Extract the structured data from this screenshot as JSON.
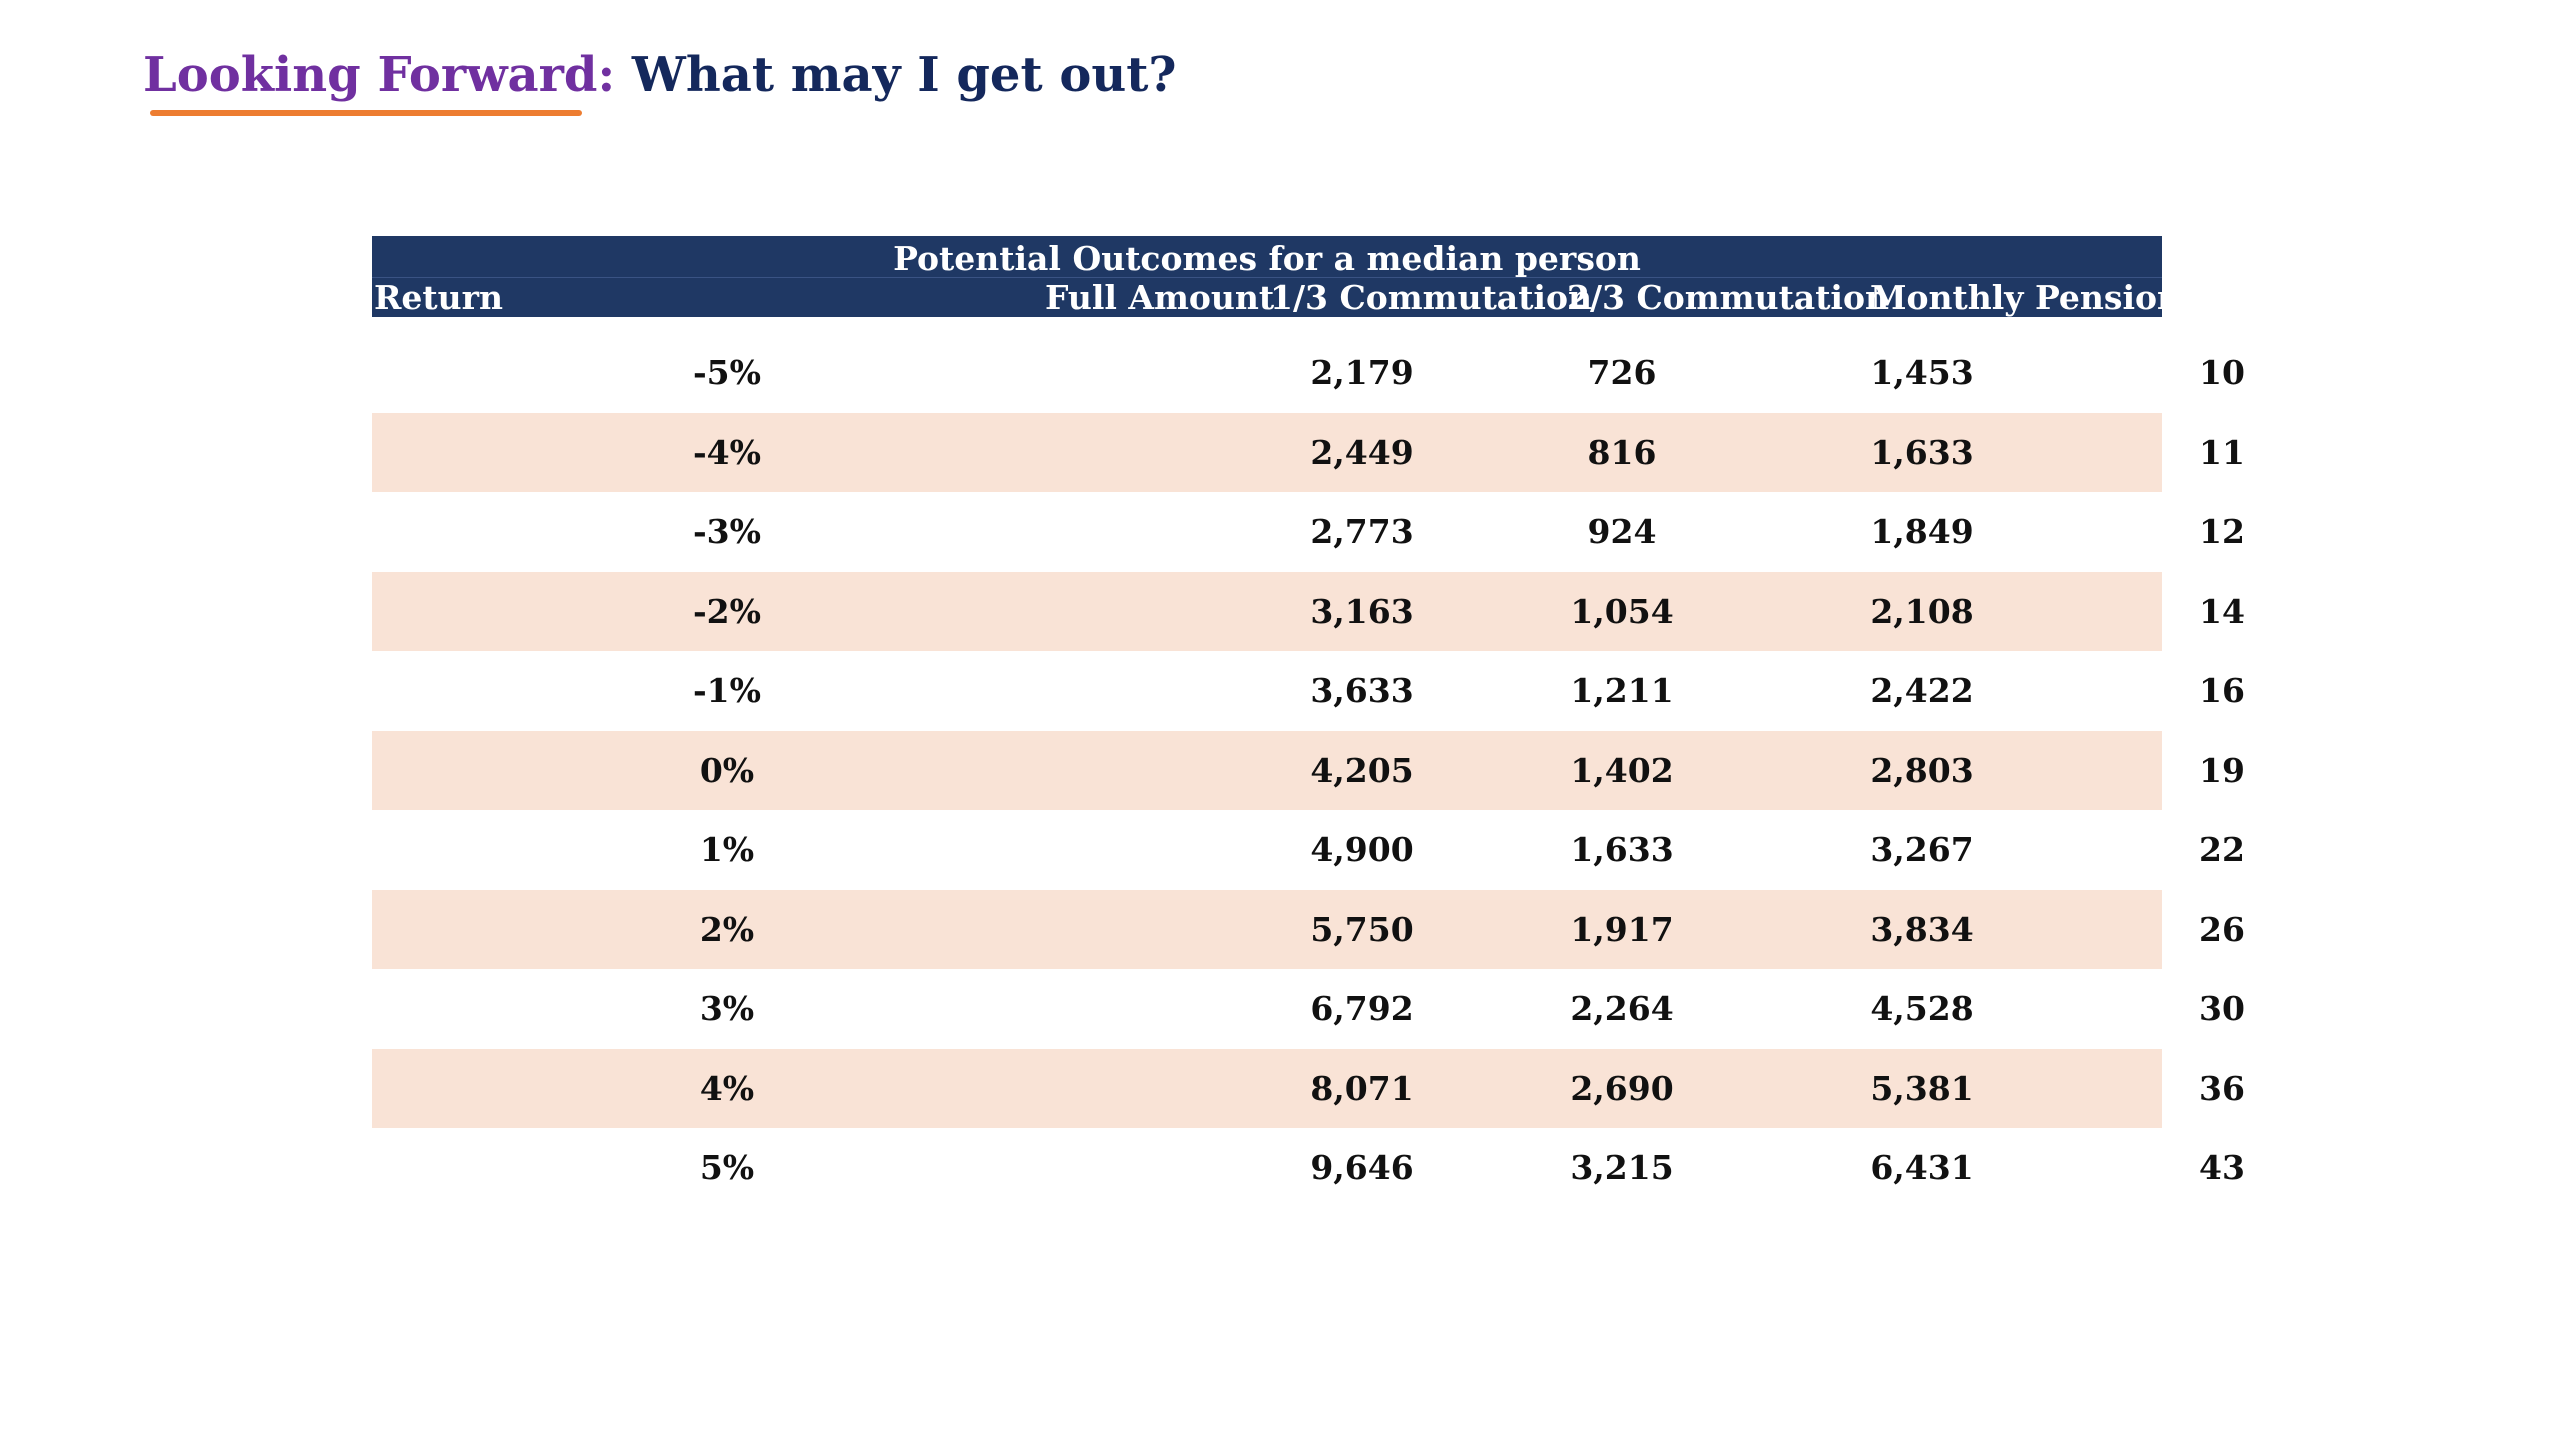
{
  "header": {
    "title_accent": "Looking Forward:",
    "title_main": " What may I get out?"
  },
  "colors": {
    "accent": "#7030a0",
    "title": "#14285c",
    "underline": "#ed7d31",
    "table_header": "#1f3864",
    "band": "#f9e3d6"
  },
  "table": {
    "caption": "Potential Outcomes for a median person",
    "columns": [
      "Return",
      "Full Amount",
      "1/3 Commutation",
      "2/3 Commutation",
      "Monthly Pension"
    ],
    "rows": [
      [
        "-5%",
        "2,179",
        "726",
        "1,453",
        "10"
      ],
      [
        "-4%",
        "2,449",
        "816",
        "1,633",
        "11"
      ],
      [
        "-3%",
        "2,773",
        "924",
        "1,849",
        "12"
      ],
      [
        "-2%",
        "3,163",
        "1,054",
        "2,108",
        "14"
      ],
      [
        "-1%",
        "3,633",
        "1,211",
        "2,422",
        "16"
      ],
      [
        "0%",
        "4,205",
        "1,402",
        "2,803",
        "19"
      ],
      [
        "1%",
        "4,900",
        "1,633",
        "3,267",
        "22"
      ],
      [
        "2%",
        "5,750",
        "1,917",
        "3,834",
        "26"
      ],
      [
        "3%",
        "6,792",
        "2,264",
        "4,528",
        "30"
      ],
      [
        "4%",
        "8,071",
        "2,690",
        "5,381",
        "36"
      ],
      [
        "5%",
        "9,646",
        "3,215",
        "6,431",
        "43"
      ]
    ]
  }
}
